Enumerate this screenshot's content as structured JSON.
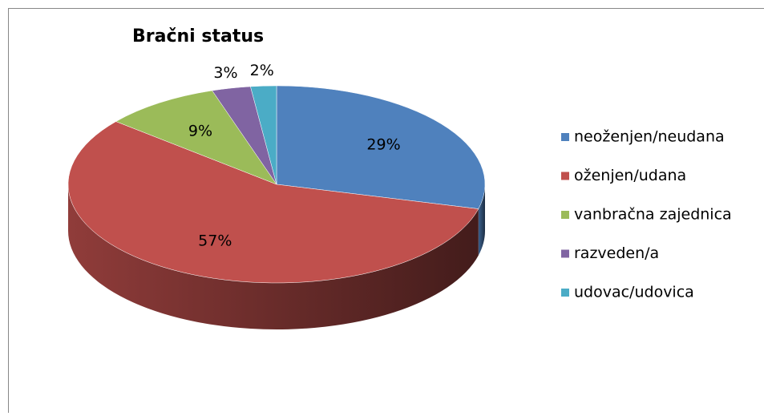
{
  "chart_data": {
    "type": "pie",
    "title": "Bračni status",
    "categories": [
      "neoženjen/neudana",
      "oženjen/udana",
      "vanbračna zajednica",
      "razveden/a",
      "udovac/udovica"
    ],
    "values": [
      29,
      57,
      9,
      3,
      2
    ],
    "value_labels": [
      "29%",
      "57%",
      "9%",
      "3%",
      "2%"
    ],
    "colors": [
      "#4f81bd",
      "#c0504d",
      "#9bbb59",
      "#8064a2",
      "#4bacc6"
    ],
    "legend": "right"
  }
}
